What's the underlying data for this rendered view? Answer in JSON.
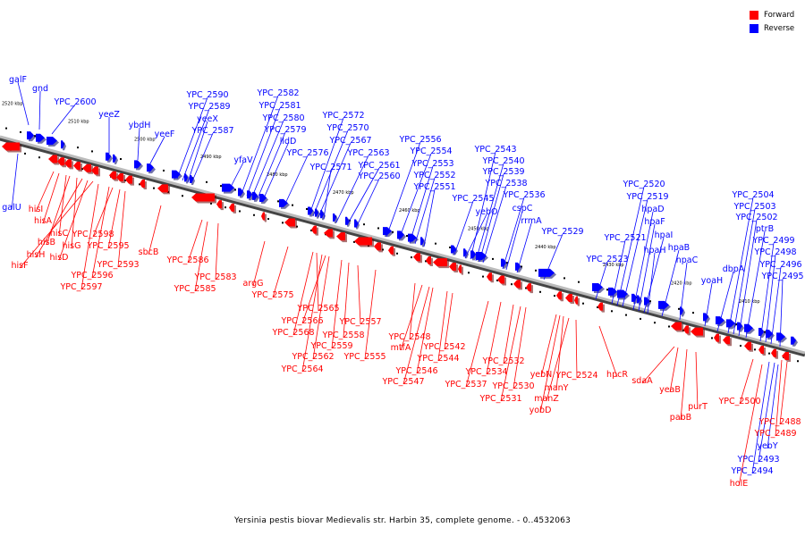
{
  "legend": [
    {
      "label": "Forward",
      "color": "#ff0000"
    },
    {
      "label": "Reverse",
      "color": "#0000ff"
    }
  ],
  "caption": "Yersinia pestis biovar Medievalis str. Harbin 35, complete genome. - 0..4532063",
  "colors": {
    "forward": "#ff0000",
    "reverse": "#0000ff",
    "backbone": "#888888"
  },
  "ticks": [
    "2520 kbp",
    "2510 kbp",
    "2500 kbp",
    "2490 kbp",
    "2480 kbp",
    "2470 kbp",
    "2460 kbp",
    "2450 kbp",
    "2440 kbp",
    "2430 kbp",
    "2420 kbp",
    "2410 kbp"
  ],
  "reverse_labels": [
    "galF",
    "gnd",
    "YPC_2600",
    "yeeZ",
    "ybdH",
    "yeeF",
    "YPC_2590",
    "YPC_2589",
    "yeeX",
    "YPC_2587",
    "yfaV",
    "YPC_2582",
    "YPC_2581",
    "YPC_2580",
    "YPC_2579",
    "lldD",
    "YPC_2576",
    "YPC_2572",
    "YPC_2570",
    "YPC_2567",
    "YPC_2571",
    "YPC_2563",
    "YPC_2561",
    "YPC_2560",
    "YPC_2556",
    "YPC_2554",
    "YPC_2553",
    "YPC_2552",
    "YPC_2551",
    "YPC_2545",
    "yebO",
    "YPC_2543",
    "YPC_2540",
    "YPC_2539",
    "YPC_2538",
    "YPC_2536",
    "cspC",
    "rrmA",
    "YPC_2529",
    "YPC_2523",
    "YPC_2521",
    "YPC_2520",
    "YPC_2519",
    "hpaD",
    "hpaF",
    "hpaI",
    "hpaH",
    "hpaB",
    "hpaC",
    "yoaH",
    "dbpA",
    "YPC_2504",
    "YPC_2503",
    "YPC_2502",
    "ptrB",
    "YPC_2499",
    "YPC_2498",
    "YPC_2496",
    "YPC_2495",
    "galU",
    "yebY",
    "YPC_2493",
    "YPC_2494"
  ],
  "forward_labels": [
    "hisI",
    "hisA",
    "hisC",
    "hisB",
    "hisG",
    "hisH",
    "hisD",
    "hisF",
    "YPC_2598",
    "YPC_2595",
    "YPC_2593",
    "YPC_2596",
    "YPC_2597",
    "sbcB",
    "YPC_2586",
    "YPC_2583",
    "YPC_2585",
    "argG",
    "YPC_2575",
    "YPC_2565",
    "YPC_2566",
    "YPC_2568",
    "YPC_2559",
    "YPC_2562",
    "YPC_2564",
    "YPC_2557",
    "YPC_2558",
    "YPC_2555",
    "YPC_2548",
    "mtfA",
    "YPC_2546",
    "YPC_2547",
    "YPC_2542",
    "YPC_2544",
    "YPC_2537",
    "YPC_2532",
    "YPC_2534",
    "YPC_2530",
    "YPC_2531",
    "yebN",
    "manY",
    "manZ",
    "yobD",
    "YPC_2524",
    "hpcR",
    "sdaA",
    "yeaB",
    "pabB",
    "purT",
    "YPC_2500",
    "YPC_2488",
    "YPC_2489",
    "holE"
  ]
}
